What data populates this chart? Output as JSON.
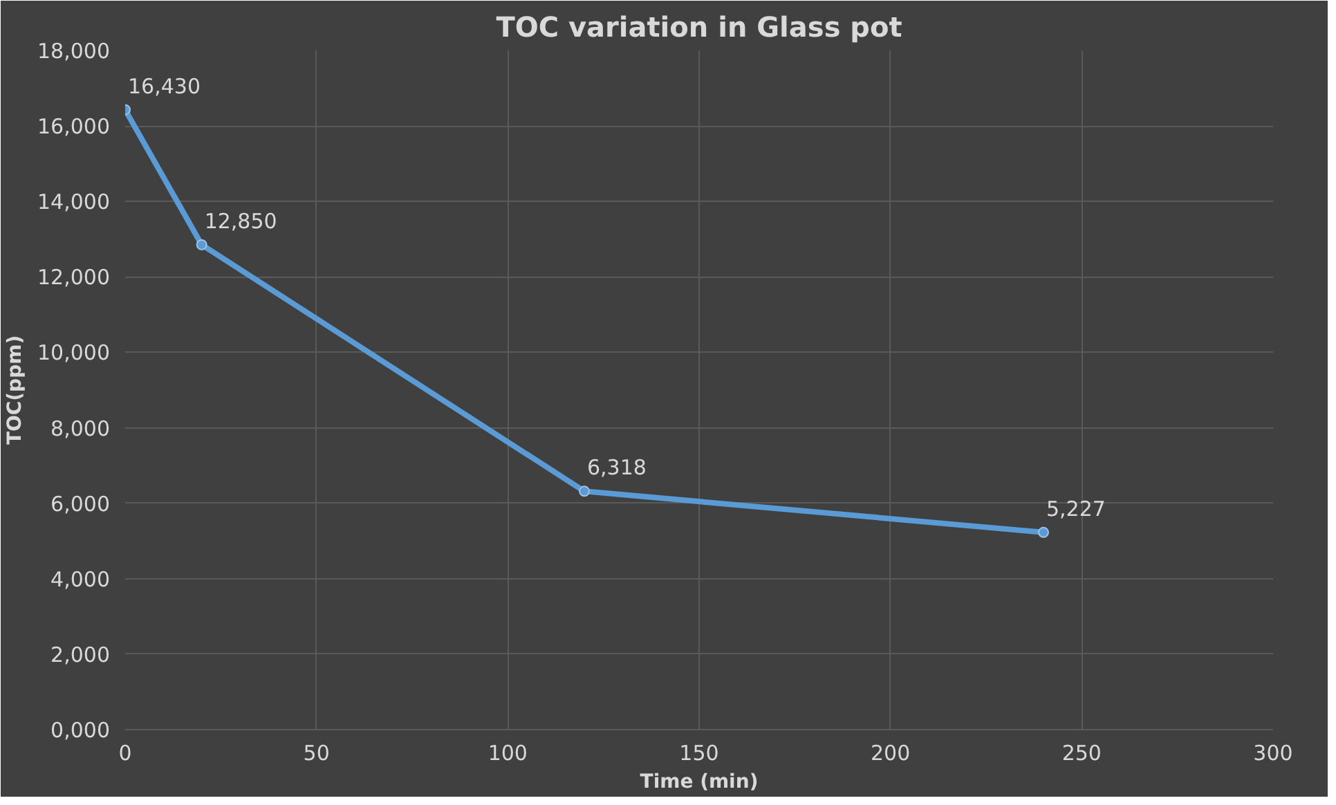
{
  "chart_data": {
    "type": "line",
    "title": "TOC variation in Glass pot",
    "xlabel": "Time (min)",
    "ylabel": "TOC(ppm)",
    "x": [
      0,
      20,
      120,
      240
    ],
    "series": [
      {
        "color": "#5b9bd5",
        "values": [
          16430,
          12850,
          6318,
          5227
        ],
        "value_labels": [
          "16,430",
          "12,850",
          "6,318",
          "5,227"
        ]
      }
    ],
    "xlim": [
      0,
      300
    ],
    "xticks": [
      0,
      50,
      100,
      150,
      200,
      250,
      300
    ],
    "ylim": [
      0,
      18000
    ],
    "yticks": [
      {
        "value": 0,
        "label": "0,000"
      },
      {
        "value": 2000,
        "label": "2,000"
      },
      {
        "value": 4000,
        "label": "4,000"
      },
      {
        "value": 6000,
        "label": "6,000"
      },
      {
        "value": 8000,
        "label": "8,000"
      },
      {
        "value": 10000,
        "label": "10,000"
      },
      {
        "value": 12000,
        "label": "12,000"
      },
      {
        "value": 14000,
        "label": "14,000"
      },
      {
        "value": 16000,
        "label": "16,000"
      },
      {
        "value": 18000,
        "label": "18,000"
      }
    ],
    "grid": true,
    "marker": "circle",
    "line_style": "solid"
  }
}
